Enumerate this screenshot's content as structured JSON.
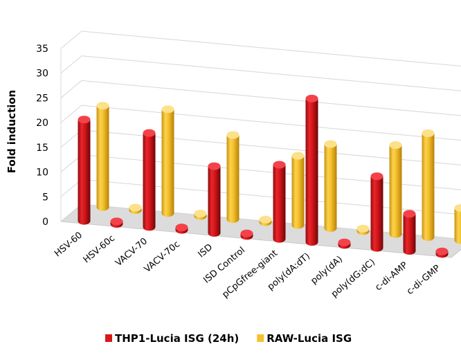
{
  "chart_data": {
    "type": "bar",
    "title": "",
    "xlabel": "",
    "ylabel": "Fold induction",
    "ylim": [
      0,
      35
    ],
    "yticks": [
      0,
      5,
      10,
      15,
      20,
      25,
      30,
      35
    ],
    "categories": [
      "HSV-60",
      "HSV-60c",
      "VACV-70",
      "VACV-70c",
      "ISD",
      "ISD Control",
      "pCpGfree-giant",
      "poly(dA:dT)",
      "poly(dA)",
      "poly(dG:dC)",
      "c-di-AMP",
      "c-di-GMP"
    ],
    "series": [
      {
        "name": "THP1-Lucia ISG (24h)",
        "color": "#d7191c",
        "values": [
          20.5,
          0.5,
          19,
          0.5,
          13.5,
          0.5,
          15,
          29,
          0.5,
          14.5,
          7.5,
          0.5
        ]
      },
      {
        "name": "RAW-Lucia ISG",
        "color": "#f6c12f",
        "values": [
          20.5,
          0.5,
          21,
          0.5,
          17,
          0.5,
          14,
          17,
          0.5,
          18,
          21,
          6.5
        ]
      }
    ],
    "grid": true,
    "legend_position": "bottom"
  }
}
